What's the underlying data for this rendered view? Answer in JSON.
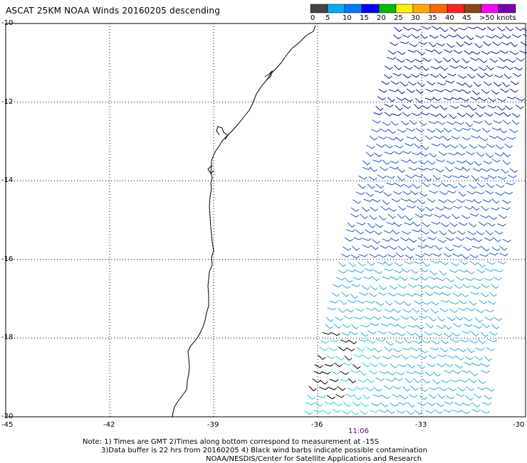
{
  "title": "ASCAT 25KM NOAA Winds 20160205 descending",
  "colorbar": {
    "labels": [
      "0",
      "5",
      "10",
      "15",
      "20",
      "25",
      "30",
      "35",
      "40",
      "45",
      ">50 knots"
    ],
    "colors": [
      "#444444",
      "#00aaff",
      "#0077ff",
      "#0000ff",
      "#00bb00",
      "#ffee00",
      "#ffaa00",
      "#ff6600",
      "#ff2222",
      "#8b4513",
      "#ff00ff",
      "#7a00aa"
    ]
  },
  "map": {
    "y_ticks": [
      "-10",
      "-12",
      "-14",
      "-16",
      "-18",
      "-20"
    ],
    "x_ticks": [
      "-45",
      "-42",
      "-39",
      "-36",
      "-33",
      "-30"
    ],
    "lat_range": [
      -20,
      -10
    ],
    "lon_range": [
      -45,
      -30
    ],
    "grid": true,
    "swath_time": "11:06",
    "barb_colors": {
      "north": "#0a1aa0",
      "mid": "#1a55d6",
      "south": "#2fa8e0",
      "cyan": "#22d3d3",
      "contaminated": "#000000"
    }
  },
  "notes": {
    "line1": "Note: 1) Times are GMT 2)Times along bottom correspond to measurement at -15S",
    "line2": "3)Data buffer is 22 hrs from 20160205 4) Black wind barbs indicate possible contamination",
    "line3": "NOAA/NESDIS/Center for Satellite Applications and Research"
  }
}
